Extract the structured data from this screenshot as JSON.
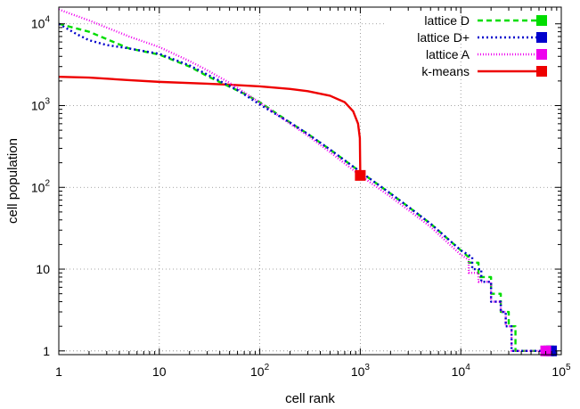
{
  "chart_data": {
    "type": "line",
    "title": "",
    "xlabel": "cell rank",
    "ylabel": "cell population",
    "x_scale": "log",
    "y_scale": "log",
    "xlim": [
      1,
      100000
    ],
    "ylim": [
      0.9,
      16000
    ],
    "grid": true,
    "legend_position": "top-right",
    "x_ticks": [
      {
        "value": 1,
        "base": "1",
        "exp": ""
      },
      {
        "value": 10,
        "base": "10",
        "exp": ""
      },
      {
        "value": 100,
        "base": "10",
        "exp": "2"
      },
      {
        "value": 1000,
        "base": "10",
        "exp": "3"
      },
      {
        "value": 10000,
        "base": "10",
        "exp": "4"
      },
      {
        "value": 100000,
        "base": "10",
        "exp": "5"
      }
    ],
    "y_ticks": [
      {
        "value": 1,
        "base": "1",
        "exp": ""
      },
      {
        "value": 10,
        "base": "10",
        "exp": ""
      },
      {
        "value": 100,
        "base": "10",
        "exp": "2"
      },
      {
        "value": 1000,
        "base": "10",
        "exp": "3"
      },
      {
        "value": 10000,
        "base": "10",
        "exp": "4"
      }
    ],
    "series": [
      {
        "name": "lattice D",
        "color": "#00dd00",
        "dash": "6,4",
        "marker": {
          "x": 75000,
          "y": 1
        },
        "points": [
          [
            1,
            10000
          ],
          [
            2,
            8000
          ],
          [
            3,
            6500
          ],
          [
            4,
            5600
          ],
          [
            5,
            5000
          ],
          [
            7,
            4600
          ],
          [
            10,
            4200
          ],
          [
            20,
            3000
          ],
          [
            30,
            2300
          ],
          [
            50,
            1700
          ],
          [
            70,
            1400
          ],
          [
            100,
            1100
          ],
          [
            200,
            620
          ],
          [
            300,
            450
          ],
          [
            500,
            290
          ],
          [
            1000,
            155
          ],
          [
            2000,
            84
          ],
          [
            3000,
            58
          ],
          [
            5000,
            36
          ],
          [
            10000,
            17
          ],
          [
            12000,
            14
          ],
          [
            12000,
            12
          ],
          [
            15000,
            12
          ],
          [
            15000,
            8
          ],
          [
            20000,
            8
          ],
          [
            20000,
            5
          ],
          [
            25000,
            5
          ],
          [
            25000,
            3
          ],
          [
            30000,
            3
          ],
          [
            30000,
            2
          ],
          [
            35000,
            2
          ],
          [
            35000,
            1
          ],
          [
            75000,
            1
          ]
        ]
      },
      {
        "name": "lattice D+",
        "color": "#0000cc",
        "dash": "2,3",
        "marker": {
          "x": 80000,
          "y": 1
        },
        "points": [
          [
            1,
            10000
          ],
          [
            1.5,
            7500
          ],
          [
            2,
            6300
          ],
          [
            3,
            5500
          ],
          [
            5,
            5000
          ],
          [
            10,
            4300
          ],
          [
            20,
            3100
          ],
          [
            40,
            2000
          ],
          [
            60,
            1550
          ],
          [
            100,
            1030
          ],
          [
            200,
            620
          ],
          [
            300,
            450
          ],
          [
            500,
            290
          ],
          [
            1000,
            155
          ],
          [
            2000,
            84
          ],
          [
            3000,
            58
          ],
          [
            5000,
            36
          ],
          [
            10000,
            17
          ],
          [
            13000,
            14
          ],
          [
            13000,
            10
          ],
          [
            16000,
            10
          ],
          [
            16000,
            7
          ],
          [
            20000,
            7
          ],
          [
            20000,
            4
          ],
          [
            25000,
            4
          ],
          [
            25000,
            3
          ],
          [
            28000,
            3
          ],
          [
            28000,
            2
          ],
          [
            32000,
            2
          ],
          [
            32000,
            1
          ],
          [
            80000,
            1
          ]
        ]
      },
      {
        "name": "lattice A",
        "color": "#ee00ee",
        "dash": "1,2",
        "marker": {
          "x": 70000,
          "y": 1
        },
        "points": [
          [
            1,
            15000
          ],
          [
            1.5,
            12500
          ],
          [
            2,
            11000
          ],
          [
            3,
            9000
          ],
          [
            5,
            7000
          ],
          [
            10,
            5200
          ],
          [
            20,
            3500
          ],
          [
            30,
            2700
          ],
          [
            50,
            1900
          ],
          [
            70,
            1450
          ],
          [
            100,
            1090
          ],
          [
            200,
            600
          ],
          [
            300,
            430
          ],
          [
            500,
            270
          ],
          [
            1000,
            140
          ],
          [
            2000,
            77
          ],
          [
            3000,
            53
          ],
          [
            5000,
            33
          ],
          [
            10000,
            15
          ],
          [
            12000,
            13
          ],
          [
            12000,
            9
          ],
          [
            15000,
            9
          ],
          [
            15000,
            7
          ],
          [
            20000,
            7
          ],
          [
            20000,
            4
          ],
          [
            25000,
            4
          ],
          [
            25000,
            3
          ],
          [
            28000,
            3
          ],
          [
            28000,
            2
          ],
          [
            32000,
            2
          ],
          [
            32000,
            1
          ],
          [
            70000,
            1
          ]
        ]
      },
      {
        "name": "k-means",
        "color": "#ee0000",
        "dash": "",
        "marker": {
          "x": 1000,
          "y": 140
        },
        "points": [
          [
            1,
            2250
          ],
          [
            2,
            2200
          ],
          [
            5,
            2050
          ],
          [
            10,
            1950
          ],
          [
            30,
            1850
          ],
          [
            50,
            1800
          ],
          [
            100,
            1720
          ],
          [
            200,
            1600
          ],
          [
            300,
            1500
          ],
          [
            500,
            1320
          ],
          [
            700,
            1100
          ],
          [
            850,
            850
          ],
          [
            950,
            600
          ],
          [
            990,
            400
          ],
          [
            1000,
            140
          ]
        ]
      }
    ]
  }
}
